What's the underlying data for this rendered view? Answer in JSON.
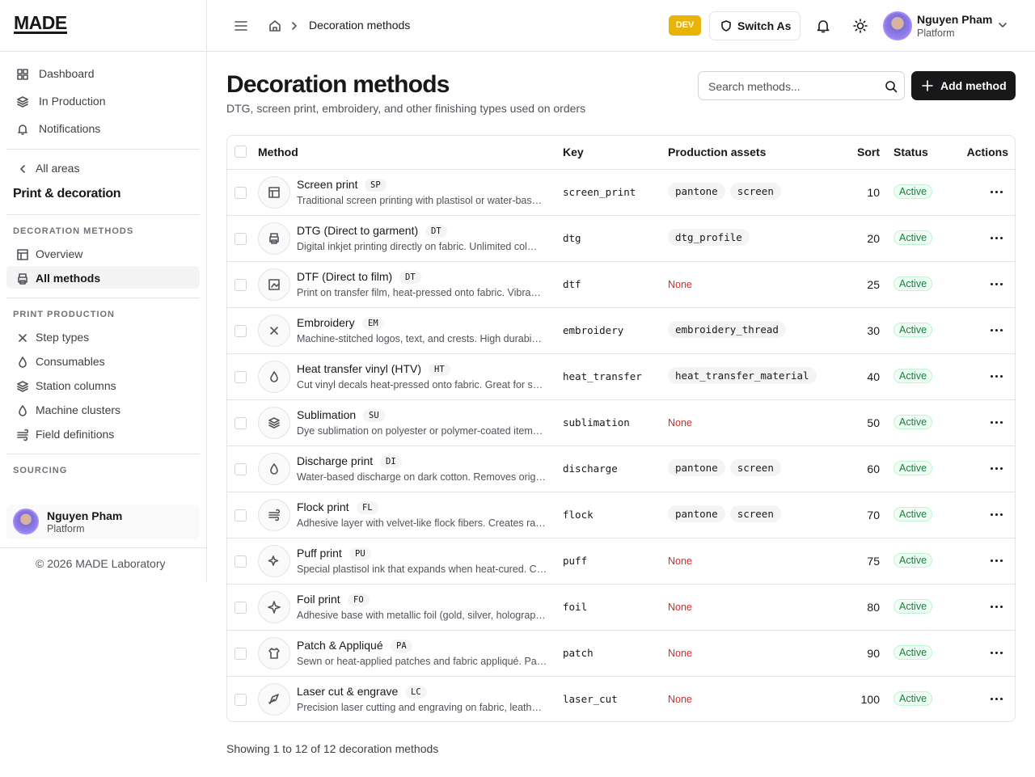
{
  "sidebar": {
    "brand": "MADE",
    "nav": [
      "Dashboard",
      "In Production",
      "Notifications"
    ],
    "back": "All areas",
    "area": "Print & decoration",
    "sections": [
      {
        "title": "DECORATION METHODS",
        "items": [
          "Overview",
          "All methods"
        ]
      },
      {
        "title": "PRINT PRODUCTION",
        "items": [
          "Step types",
          "Consumables",
          "Station columns",
          "Machine clusters",
          "Field definitions"
        ]
      },
      {
        "title": "SOURCING",
        "items": []
      }
    ],
    "user": {
      "name": "Nguyen Pham",
      "role": "Platform"
    },
    "footer": "© 2026 MADE Laboratory"
  },
  "topbar": {
    "breadcrumb": "Decoration methods",
    "env": "DEV",
    "switch": "Switch As",
    "user": {
      "name": "Nguyen Pham",
      "role": "Platform"
    }
  },
  "header": {
    "title": "Decoration methods",
    "subtitle": "DTG, screen print, embroidery, and other finishing types used on orders",
    "search_placeholder": "Search methods...",
    "add_button": "Add method"
  },
  "table": {
    "columns": [
      "Method",
      "Key",
      "Production assets",
      "Sort",
      "Status",
      "Actions"
    ],
    "rows": [
      {
        "name": "Screen print",
        "code": "SP",
        "description": "Traditional screen printing with plastisol or water-bas…",
        "key": "screen_print",
        "assets": [
          "pantone",
          "screen"
        ],
        "sort": 10,
        "status": "Active"
      },
      {
        "name": "DTG (Direct to garment)",
        "code": "DT",
        "description": "Digital inkjet printing directly on fabric. Unlimited col…",
        "key": "dtg",
        "assets": [
          "dtg_profile"
        ],
        "sort": 20,
        "status": "Active"
      },
      {
        "name": "DTF (Direct to film)",
        "code": "DT",
        "description": "Print on transfer film, heat-pressed onto fabric. Vibra…",
        "key": "dtf",
        "assets": "None",
        "sort": 25,
        "status": "Active"
      },
      {
        "name": "Embroidery",
        "code": "EM",
        "description": "Machine-stitched logos, text, and crests. High durabi…",
        "key": "embroidery",
        "assets": [
          "embroidery_thread"
        ],
        "sort": 30,
        "status": "Active"
      },
      {
        "name": "Heat transfer vinyl (HTV)",
        "code": "HT",
        "description": "Cut vinyl decals heat-pressed onto fabric. Great for s…",
        "key": "heat_transfer",
        "assets": [
          "heat_transfer_material"
        ],
        "sort": 40,
        "status": "Active"
      },
      {
        "name": "Sublimation",
        "code": "SU",
        "description": "Dye sublimation on polyester or polymer-coated item…",
        "key": "sublimation",
        "assets": "None",
        "sort": 50,
        "status": "Active"
      },
      {
        "name": "Discharge print",
        "code": "DI",
        "description": "Water-based discharge on dark cotton. Removes orig…",
        "key": "discharge",
        "assets": [
          "pantone",
          "screen"
        ],
        "sort": 60,
        "status": "Active"
      },
      {
        "name": "Flock print",
        "code": "FL",
        "description": "Adhesive layer with velvet-like flock fibers. Creates ra…",
        "key": "flock",
        "assets": [
          "pantone",
          "screen"
        ],
        "sort": 70,
        "status": "Active"
      },
      {
        "name": "Puff print",
        "code": "PU",
        "description": "Special plastisol ink that expands when heat-cured. C…",
        "key": "puff",
        "assets": "None",
        "sort": 75,
        "status": "Active"
      },
      {
        "name": "Foil print",
        "code": "FO",
        "description": "Adhesive base with metallic foil (gold, silver, holograp…",
        "key": "foil",
        "assets": "None",
        "sort": 80,
        "status": "Active"
      },
      {
        "name": "Patch & Appliqué",
        "code": "PA",
        "description": "Sewn or heat-applied patches and fabric appliqué. Pa…",
        "key": "patch",
        "assets": "None",
        "sort": 90,
        "status": "Active"
      },
      {
        "name": "Laser cut & engrave",
        "code": "LC",
        "description": "Precision laser cutting and engraving on fabric, leath…",
        "key": "laser_cut",
        "assets": "None",
        "sort": 100,
        "status": "Active"
      }
    ]
  },
  "pagination": "Showing 1 to 12 of 12 decoration methods"
}
